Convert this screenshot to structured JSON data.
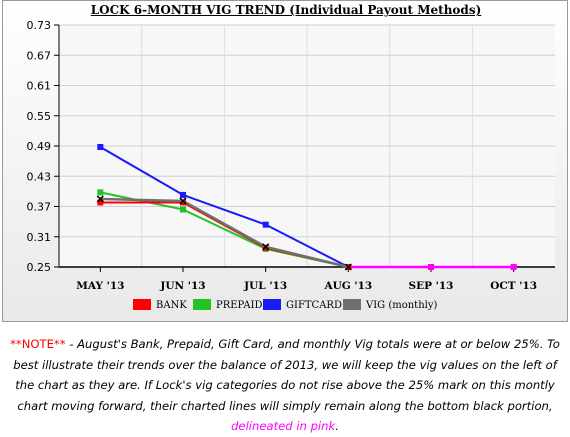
{
  "chart_data": {
    "type": "line",
    "title": "LOCK 6-MONTH VIG TREND (Individual Payout Methods)",
    "categories": [
      "MAY '13",
      "JUN '13",
      "JUL '13",
      "AUG '13",
      "SEP '13",
      "OCT '13"
    ],
    "y_ticks": [
      "0.73",
      "0.67",
      "0.61",
      "0.55",
      "0.49",
      "0.43",
      "0.37",
      "0.31",
      "0.25"
    ],
    "ylim": [
      0.25,
      0.73
    ],
    "grid": true,
    "legend_position": "bottom",
    "series": [
      {
        "name": "BANK",
        "color": "#ff0000",
        "values": [
          0.378,
          0.378,
          0.288,
          0.25,
          null,
          null
        ]
      },
      {
        "name": "PREPAID",
        "color": "#22c322",
        "values": [
          0.398,
          0.364,
          0.286,
          0.25,
          null,
          null
        ]
      },
      {
        "name": "GIFTCARD",
        "color": "#1a1aff",
        "values": [
          0.488,
          0.393,
          0.334,
          0.25,
          null,
          null
        ]
      },
      {
        "name": "VIG (monthly)",
        "color": "#707070",
        "values": [
          0.385,
          0.381,
          0.29,
          0.25,
          null,
          null
        ]
      }
    ],
    "floor_line": {
      "color": "#ff00ff",
      "values": [
        null,
        null,
        null,
        0.25,
        0.25,
        0.25
      ]
    }
  },
  "note": {
    "prefix": "**NOTE**",
    "body": " - August's Bank, Prepaid, Gift Card, and monthly Vig totals were at or below 25%. To best illustrate their trends over the balance of 2013, we will keep the vig values on the left of the chart as they are. If Lock's vig categories do not rise above the 25% mark on this montly chart moving forward, their charted lines will simply remain along the bottom black portion, ",
    "highlight": "delineated in pink",
    "suffix": "."
  }
}
